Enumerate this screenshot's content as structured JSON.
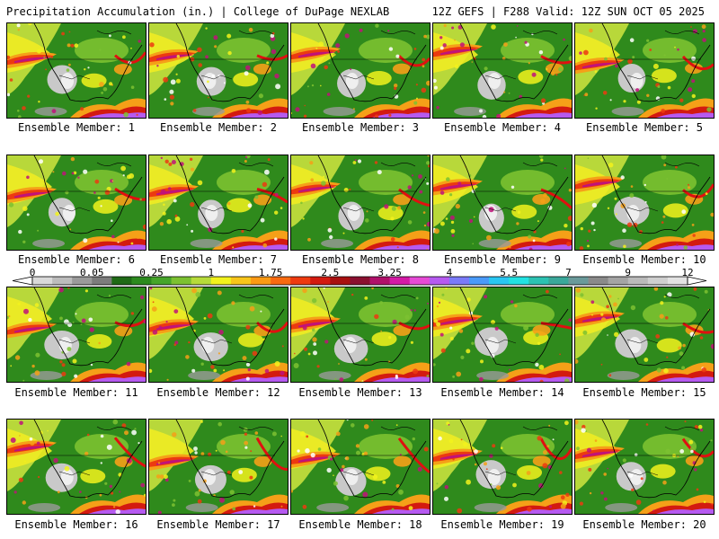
{
  "header": {
    "title": "Precipitation Accumulation (in.) | College of DuPage NEXLAB",
    "run_info": "12Z GEFS | F288 Valid: 12Z SUN OCT 05 2025"
  },
  "panels": [
    {
      "label": "Ensemble Member: 1"
    },
    {
      "label": "Ensemble Member: 2"
    },
    {
      "label": "Ensemble Member: 3"
    },
    {
      "label": "Ensemble Member: 4"
    },
    {
      "label": "Ensemble Member: 5"
    },
    {
      "label": "Ensemble Member: 6"
    },
    {
      "label": "Ensemble Member: 7"
    },
    {
      "label": "Ensemble Member: 8"
    },
    {
      "label": "Ensemble Member: 9"
    },
    {
      "label": "Ensemble Member: 10"
    },
    {
      "label": "Ensemble Member: 11"
    },
    {
      "label": "Ensemble Member: 12"
    },
    {
      "label": "Ensemble Member: 13"
    },
    {
      "label": "Ensemble Member: 14"
    },
    {
      "label": "Ensemble Member: 15"
    },
    {
      "label": "Ensemble Member: 16"
    },
    {
      "label": "Ensemble Member: 17"
    },
    {
      "label": "Ensemble Member: 18"
    },
    {
      "label": "Ensemble Member: 19"
    },
    {
      "label": "Ensemble Member: 20"
    }
  ],
  "legend": {
    "tick_labels": [
      "0",
      "0.05",
      "0.25",
      "1",
      "1.75",
      "2.5",
      "3.25",
      "4",
      "5.5",
      "7",
      "9",
      "12"
    ],
    "colors": [
      "#d9d9d9",
      "#bcbcbc",
      "#9a9a9a",
      "#7c7c7c",
      "#1f6a16",
      "#2c8a1e",
      "#46a52a",
      "#7cc131",
      "#b7db3a",
      "#f2f21c",
      "#f7c51a",
      "#fb9a14",
      "#f86a10",
      "#ee3a10",
      "#d31a10",
      "#a81010",
      "#8a1030",
      "#b0106a",
      "#d41aa6",
      "#e64ad6",
      "#b65af0",
      "#7a7af8",
      "#4a9af8",
      "#29c6f2",
      "#22e2e2",
      "#2cc2b2",
      "#3aa89a",
      "#6a9a9a",
      "#8a8a8a",
      "#a4a4a4",
      "#bababa",
      "#cfcfcf",
      "#e2e2e2"
    ]
  }
}
